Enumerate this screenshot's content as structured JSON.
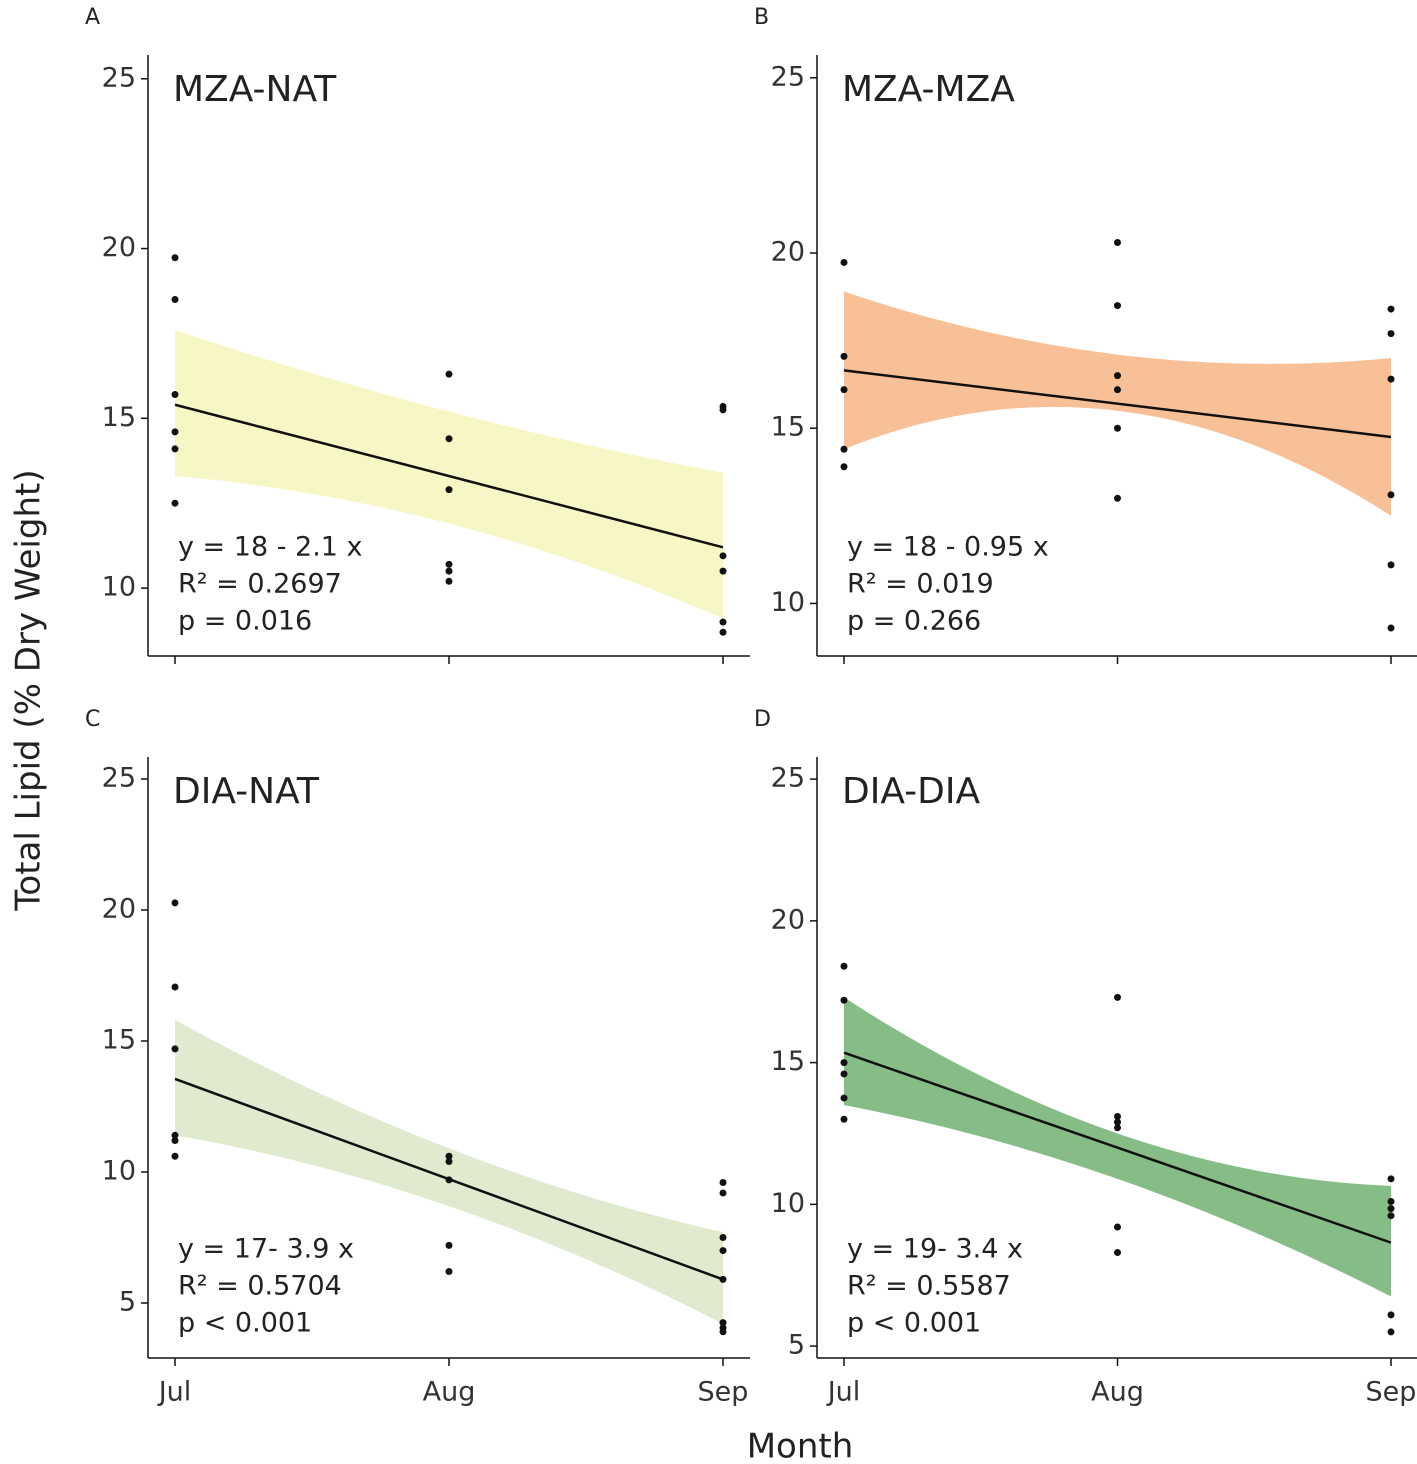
{
  "ylabel": "Total Lipid (% Dry Weight)",
  "xlabel": "Month",
  "chart_data": [
    {
      "type": "scatter",
      "panel": "A",
      "title": "MZA-NAT",
      "color": "#f7f7c6",
      "equation": [
        "y = 18 - 2.1 x",
        "R² = 0.2697",
        "p = 0.016"
      ],
      "categories": [
        "Jul",
        "Aug",
        "Sep"
      ],
      "show_xlabels": false,
      "values": [
        [
          19.73,
          18.5,
          15.7,
          14.6,
          14.1,
          12.5
        ],
        [
          16.3,
          14.4,
          12.9,
          10.7,
          10.5,
          10.2
        ],
        [
          15.35,
          15.25,
          10.95,
          10.5,
          9.0,
          8.7
        ]
      ],
      "fit": [
        15.4,
        11.2
      ],
      "band_upper": [
        17.6,
        15.2,
        13.4
      ],
      "band_lower": [
        13.3,
        11.9,
        9.1
      ],
      "ylim": [
        8,
        25.7
      ],
      "yticks": [
        10,
        15,
        20,
        25
      ]
    },
    {
      "type": "scatter",
      "panel": "B",
      "title": "MZA-MZA",
      "color": "#f8c096",
      "equation": [
        "y = 18 - 0.95 x",
        "R² = 0.019",
        "p = 0.266"
      ],
      "categories": [
        "Jul",
        "Aug",
        "Sep"
      ],
      "show_xlabels": false,
      "values": [
        [
          19.73,
          17.05,
          16.1,
          14.4,
          13.9
        ],
        [
          20.3,
          18.5,
          16.5,
          16.1,
          15.0,
          13.0
        ],
        [
          18.4,
          17.7,
          16.4,
          13.1,
          11.1,
          9.3
        ]
      ],
      "fit": [
        16.65,
        14.75
      ],
      "band_upper": [
        18.9,
        17.1,
        17.0
      ],
      "band_lower": [
        14.4,
        15.5,
        12.5
      ],
      "ylim": [
        8.5,
        25.65
      ],
      "yticks": [
        10,
        15,
        20,
        25
      ]
    },
    {
      "type": "scatter",
      "panel": "C",
      "title": "DIA-NAT",
      "color": "#dfeacf",
      "equation": [
        "y = 17- 3.9 x",
        "R² = 0.5704",
        "p < 0.001"
      ],
      "categories": [
        "Jul",
        "Aug",
        "Sep"
      ],
      "show_xlabels": true,
      "values": [
        [
          20.27,
          17.06,
          14.7,
          11.4,
          11.2,
          10.6
        ],
        [
          10.6,
          10.4,
          9.7,
          7.2,
          6.2
        ],
        [
          9.6,
          9.2,
          7.5,
          7.0,
          5.9,
          4.25,
          4.05,
          3.9
        ]
      ],
      "fit": [
        13.55,
        5.9
      ],
      "band_upper": [
        15.8,
        10.9,
        7.7
      ],
      "band_lower": [
        11.4,
        8.7,
        4.2
      ],
      "ylim": [
        2.9,
        25.84
      ],
      "yticks": [
        5,
        10,
        15,
        20,
        25
      ]
    },
    {
      "type": "scatter",
      "panel": "D",
      "title": "DIA-DIA",
      "color": "#86bd86",
      "equation": [
        "y = 19- 3.4 x",
        "R² = 0.5587",
        "p < 0.001"
      ],
      "categories": [
        "Jul",
        "Aug",
        "Sep"
      ],
      "show_xlabels": true,
      "values": [
        [
          18.4,
          17.2,
          15.0,
          14.6,
          13.75,
          13.0
        ],
        [
          17.3,
          13.1,
          12.9,
          12.7,
          9.2,
          8.3
        ],
        [
          10.9,
          10.1,
          9.85,
          9.6,
          6.1,
          5.5
        ]
      ],
      "fit": [
        15.35,
        8.65
      ],
      "band_upper": [
        17.3,
        12.5,
        10.65
      ],
      "band_lower": [
        13.5,
        10.9,
        6.75
      ],
      "ylim": [
        4.58,
        25.78
      ],
      "yticks": [
        5,
        10,
        15,
        20,
        25
      ]
    }
  ]
}
